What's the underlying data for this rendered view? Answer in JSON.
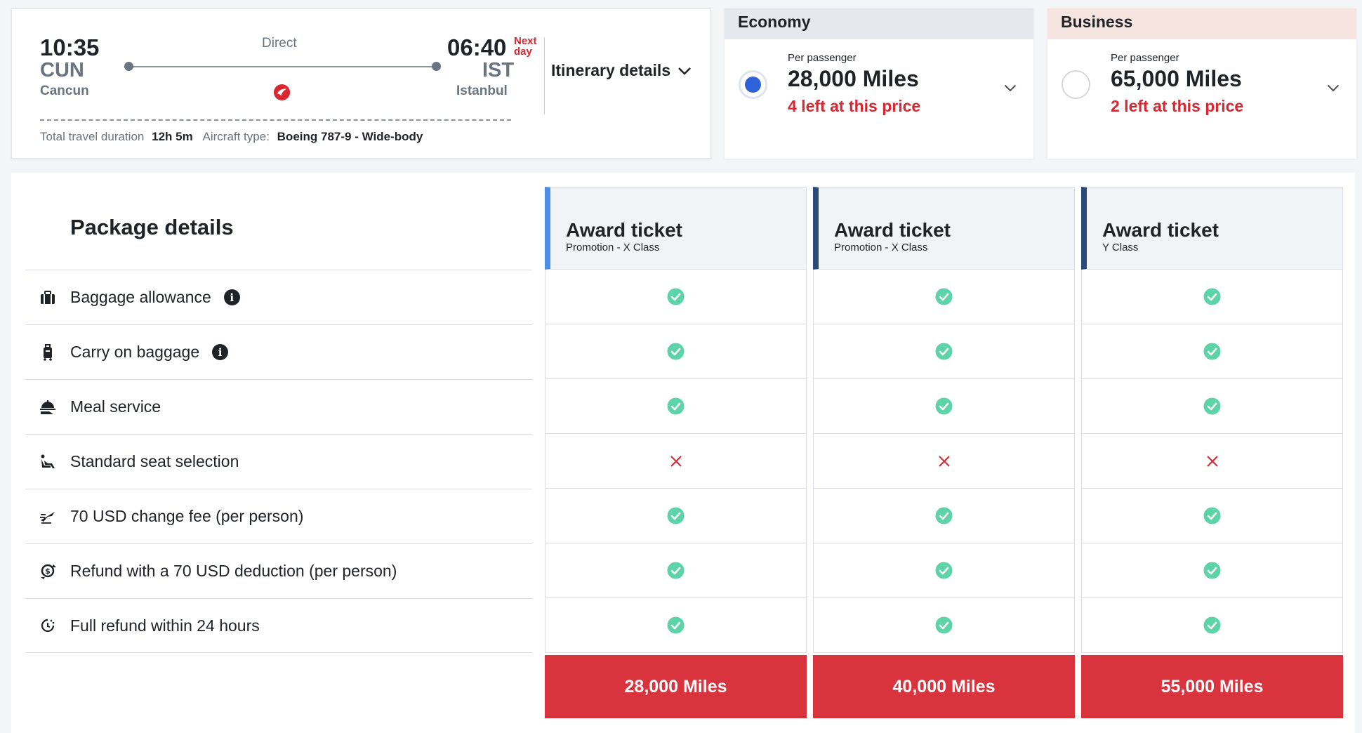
{
  "flight": {
    "dep_time": "10:35",
    "dep_code": "CUN",
    "dep_city": "Cancun",
    "arr_time": "06:40",
    "arr_code": "IST",
    "arr_city": "Istanbul",
    "next_day_line1": "Next",
    "next_day_line2": "day",
    "route_type": "Direct",
    "itinerary_label": "Itinerary details",
    "duration_label": "Total travel duration",
    "duration_value": "12h 5m",
    "aircraft_label": "Aircraft type:",
    "aircraft_value": "Boeing 787-9 - Wide-body"
  },
  "cabins": [
    {
      "name": "Economy",
      "per_passenger": "Per passenger",
      "miles": "28,000 Miles",
      "availability": "4 left at this price",
      "selected": true
    },
    {
      "name": "Business",
      "per_passenger": "Per passenger",
      "miles": "65,000 Miles",
      "availability": "2 left at this price",
      "selected": false
    }
  ],
  "package": {
    "title": "Package details",
    "features": [
      {
        "label": "Baggage allowance",
        "icon": "baggage-icon",
        "info": true
      },
      {
        "label": "Carry on baggage",
        "icon": "carry-on-icon",
        "info": true
      },
      {
        "label": "Meal service",
        "icon": "meal-icon",
        "info": false
      },
      {
        "label": "Standard seat selection",
        "icon": "seat-icon",
        "info": false
      },
      {
        "label": "70 USD change fee (per person)",
        "icon": "change-fee-icon",
        "info": false
      },
      {
        "label": "Refund with a 70 USD deduction (per person)",
        "icon": "refund-icon",
        "info": false
      },
      {
        "label": "Full refund within 24 hours",
        "icon": "full-refund-icon",
        "info": false
      }
    ],
    "fares": [
      {
        "title": "Award ticket",
        "subtitle": "Promotion - X Class",
        "price": "28,000 Miles",
        "included": [
          true,
          true,
          true,
          false,
          true,
          true,
          true
        ]
      },
      {
        "title": "Award ticket",
        "subtitle": "Promotion - X Class",
        "price": "40,000 Miles",
        "included": [
          true,
          true,
          true,
          false,
          true,
          true,
          true
        ]
      },
      {
        "title": "Award ticket",
        "subtitle": "Y Class",
        "price": "55,000 Miles",
        "included": [
          true,
          true,
          true,
          false,
          true,
          true,
          true
        ]
      }
    ]
  },
  "colors": {
    "accent_red": "#d9343d",
    "check_green": "#5dd3a8",
    "cross_red": "#d9262f",
    "selected_blue": "#2e62d9"
  }
}
